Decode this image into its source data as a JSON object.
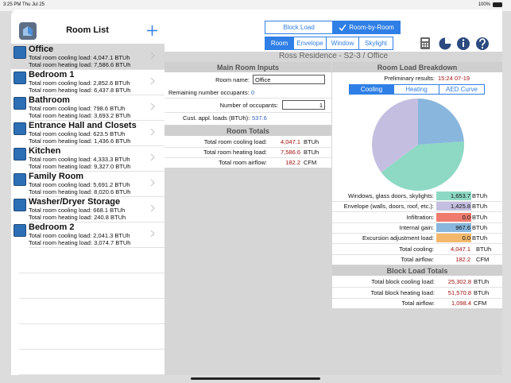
{
  "status": {
    "time": "3:25 PM",
    "date": "Thu Jul 25",
    "battery": "100%"
  },
  "room_list": {
    "title": "Room List",
    "rooms": [
      {
        "name": "Office",
        "cooling": "Total room cooling load: 4,047.1 BTUh",
        "heating": "Total room heating load: 7,586.6 BTUh"
      },
      {
        "name": "Bedroom 1",
        "cooling": "Total room cooling load: 2,852.6 BTUh",
        "heating": "Total room heating load: 6,437.8 BTUh"
      },
      {
        "name": "Bathroom",
        "cooling": "Total room cooling load: 798.6 BTUh",
        "heating": "Total room heating load: 3,693.2 BTUh"
      },
      {
        "name": "Entrance Hall and Closets",
        "cooling": "Total room cooling load: 623.5 BTUh",
        "heating": "Total room heating load: 1,436.6 BTUh"
      },
      {
        "name": "Kitchen",
        "cooling": "Total room cooling load: 4,333.3 BTUh",
        "heating": "Total room heating load: 9,327.0 BTUh"
      },
      {
        "name": "Family Room",
        "cooling": "Total room cooling load: 5,691.2 BTUh",
        "heating": "Total room heating load: 8,020.6 BTUh"
      },
      {
        "name": "Washer/Dryer Storage",
        "cooling": "Total room cooling load: 668.1 BTUh",
        "heating": "Total room heating load: 240.8 BTUh"
      },
      {
        "name": "Bedroom 2",
        "cooling": "Total room cooling load: 2,041.3 BTUh",
        "heating": "Total room heating load: 3,074.7 BTUh"
      }
    ]
  },
  "mode_tabs": [
    "Block Load",
    "Room-by-Room"
  ],
  "section_tabs": [
    "Room",
    "Envelope",
    "Window",
    "Skylight"
  ],
  "header": "Ross Residence - S2-3 / Office",
  "main_inputs": {
    "title": "Main Room Inputs",
    "room_name_label": "Room name:",
    "room_name_value": "Office",
    "remaining_label": "Remaining number occupants:",
    "remaining_value": "0",
    "occupants_label": "Number of occupants:",
    "occupants_value": "1",
    "cust_label": "Cust. appl. loads (BTUh):",
    "cust_value": "537.6"
  },
  "room_totals": {
    "title": "Room Totals",
    "rows": [
      {
        "label": "Total room cooling load:",
        "value": "4,047.1",
        "unit": "BTUh"
      },
      {
        "label": "Total room heating load:",
        "value": "7,586.6",
        "unit": "BTUh"
      },
      {
        "label": "Total room airflow:",
        "value": "182.2",
        "unit": "CFM"
      }
    ]
  },
  "breakdown": {
    "title": "Room Load Breakdown",
    "prelim_label": "Preliminary results:",
    "prelim_value": "15:24 07-19",
    "tabs": [
      "Cooling",
      "Heating",
      "AED Curve"
    ],
    "rows": [
      {
        "label": "Windows, glass doors, skylights:",
        "value": 1653.7,
        "value_label": "1,653.7",
        "unit": "BTUh",
        "color": "#8dd9c4"
      },
      {
        "label": "Envelope (walls, doors, roof, etc.):",
        "value": 1425.8,
        "value_label": "1,425.8",
        "unit": "BTUh",
        "color": "#c4bfe0"
      },
      {
        "label": "Infiltration:",
        "value": 0,
        "value_label": "0.0",
        "unit": "BTUh",
        "color": "#ee7b6d"
      },
      {
        "label": "Internal gain:",
        "value": 967.6,
        "value_label": "967.6",
        "unit": "BTUh",
        "color": "#88b6dd"
      },
      {
        "label": "Excursion adjustment load:",
        "value": 0,
        "value_label": "0.0",
        "unit": "BTUh",
        "color": "#f4b86c"
      }
    ],
    "totals": [
      {
        "label": "Total cooling:",
        "value": "4,047.1",
        "unit": "BTUh"
      },
      {
        "label": "Total airflow:",
        "value": "182.2",
        "unit": "CFM"
      }
    ]
  },
  "block_totals": {
    "title": "Block Load Totals",
    "rows": [
      {
        "label": "Total block cooling load:",
        "value": "25,302.8",
        "unit": "BTUh"
      },
      {
        "label": "Total block heating load:",
        "value": "51,570.8",
        "unit": "BTUh"
      },
      {
        "label": "Total airflow:",
        "value": "1,098.4",
        "unit": "CFM"
      }
    ]
  }
}
